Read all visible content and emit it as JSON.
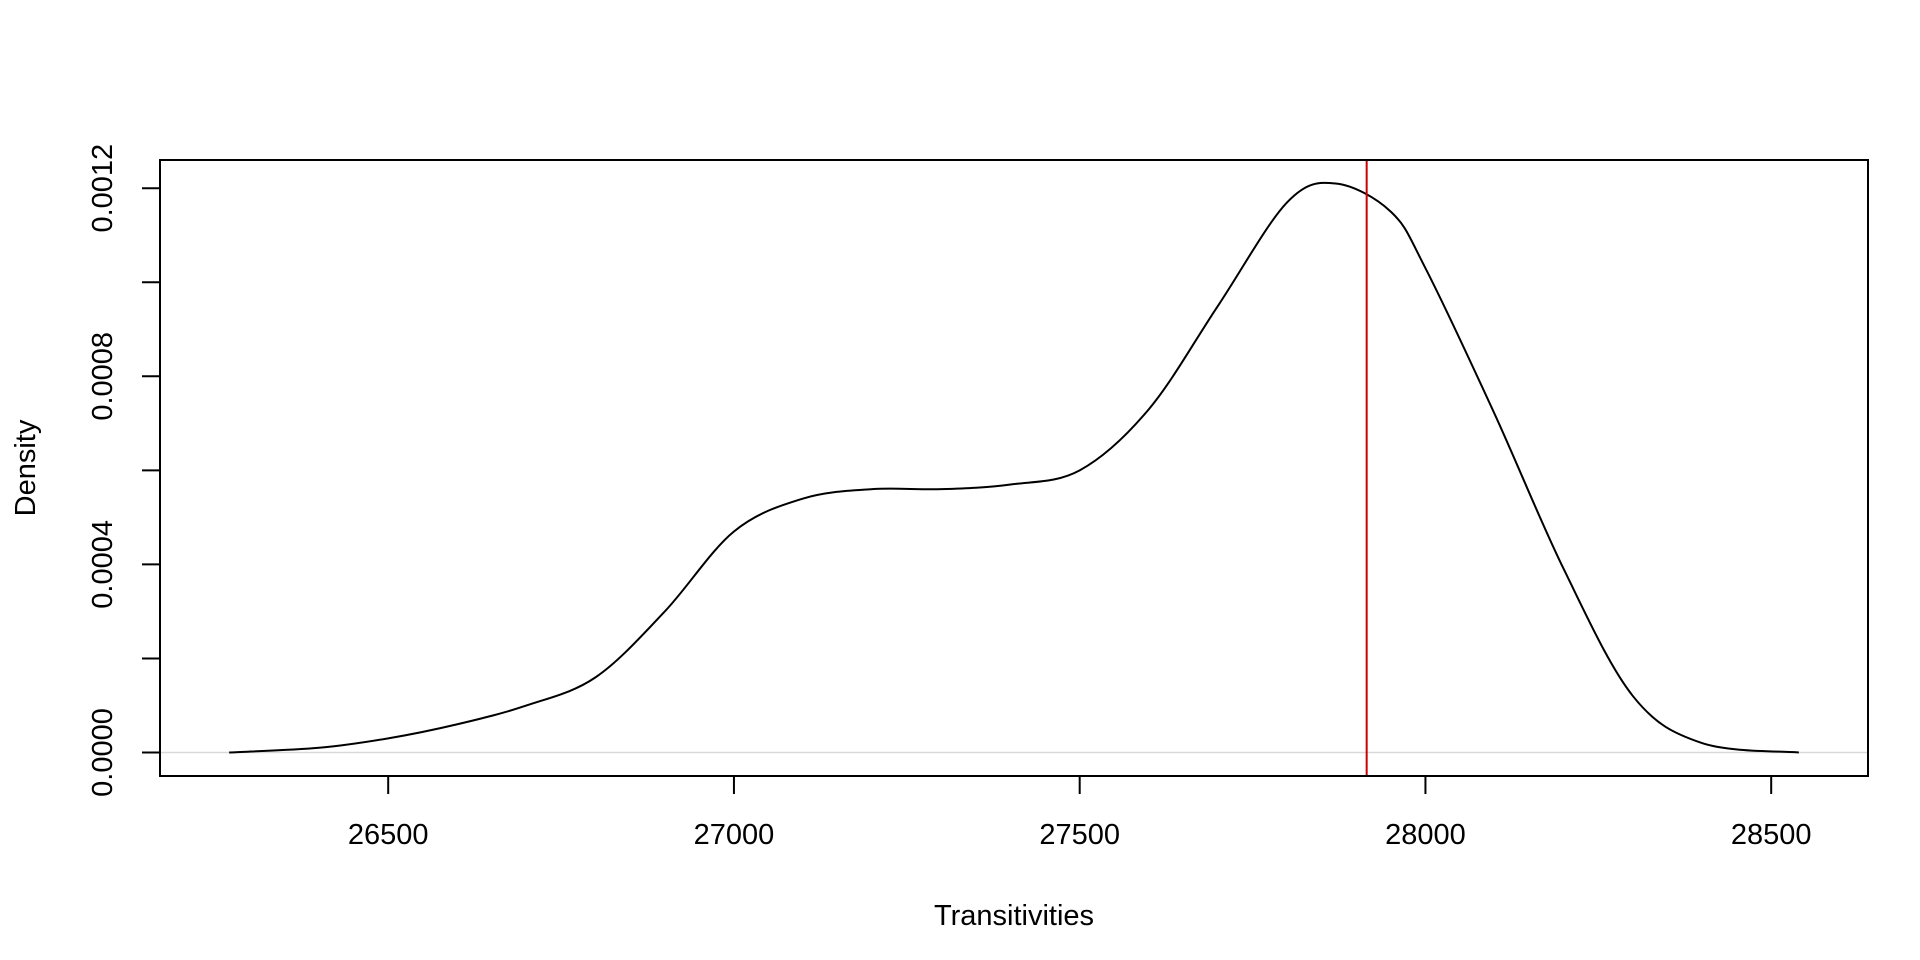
{
  "chart_data": {
    "type": "line",
    "title": "",
    "xlabel": "Transitivities",
    "ylabel": "Density",
    "xlim": [
      26170,
      28640
    ],
    "ylim": [
      -5e-05,
      0.00126
    ],
    "x_ticks": [
      26500,
      27000,
      27500,
      28000,
      28500
    ],
    "x_tick_labels": [
      "26500",
      "27000",
      "27500",
      "28000",
      "28500"
    ],
    "y_ticks": [
      0.0,
      0.0002,
      0.0004,
      0.0006,
      0.0008,
      0.001,
      0.0012
    ],
    "y_tick_labels": [
      "0.0000",
      "",
      "0.0004",
      "",
      "0.0008",
      "",
      "0.0012"
    ],
    "grid": false,
    "legend": "none",
    "series": [
      {
        "color": "#000000",
        "x": [
          26270,
          26400,
          26500,
          26600,
          26700,
          26800,
          26900,
          27000,
          27100,
          27200,
          27300,
          27400,
          27500,
          27600,
          27700,
          27800,
          27870,
          27950,
          28000,
          28100,
          28200,
          28300,
          28400,
          28540
        ],
        "y": [
          0.0,
          1e-05,
          3e-05,
          6e-05,
          0.0001,
          0.00016,
          0.0003,
          0.00047,
          0.00054,
          0.00056,
          0.00056,
          0.00057,
          0.0006,
          0.00073,
          0.00095,
          0.00117,
          0.00121,
          0.00115,
          0.00103,
          0.00072,
          0.00039,
          0.00012,
          2e-05,
          0.0
        ]
      }
    ],
    "baseline": {
      "y": 0,
      "color": "#d9d9d9"
    },
    "vline": {
      "x": 27915,
      "color": "#cc0000"
    }
  }
}
